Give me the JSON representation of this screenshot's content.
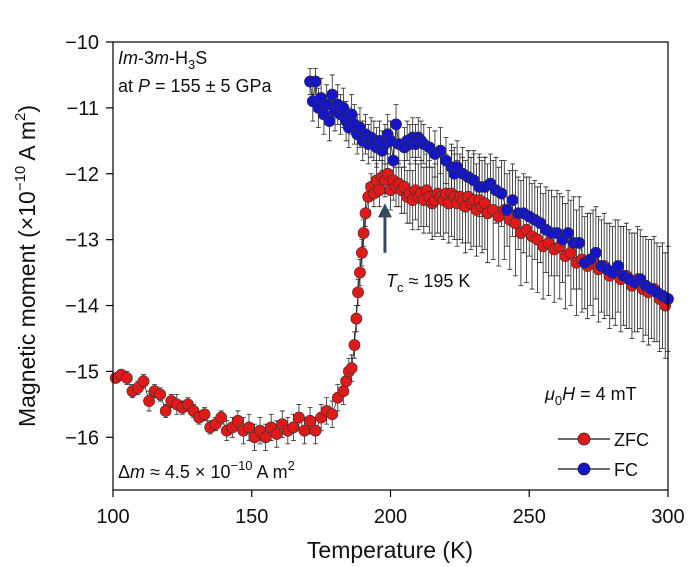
{
  "chart_data": {
    "type": "scatter",
    "xlabel": "Temperature (K)",
    "ylabel": {
      "main": "Magnetic moment (×10",
      "exp": "−10",
      "unit": " A m",
      "unit_exp": "2",
      "close": ")"
    },
    "xlim": [
      100,
      300
    ],
    "ylim": [
      -16.8,
      -10
    ],
    "xticks": [
      100,
      150,
      200,
      250,
      300
    ],
    "xtick_labels": [
      "100",
      "150",
      "200",
      "250",
      "300"
    ],
    "yticks": [
      -10,
      -11,
      -12,
      -13,
      -14,
      -15,
      -16
    ],
    "ytick_labels": [
      "−10",
      "−11",
      "−12",
      "−13",
      "−14",
      "−15",
      "−16"
    ],
    "annotations": {
      "sample_line1": {
        "italic1": "Im",
        "t1": "-3",
        "italic2": "m",
        "t2": "-H",
        "sub": "3",
        "t3": "S"
      },
      "sample_line2": {
        "t1": "at ",
        "italic": "P",
        "t2": " = 155 ± 5 GPa"
      },
      "tc": {
        "italic": "T",
        "sub": "c",
        "text": " ≈ 195 K",
        "arrow_x": 198,
        "arrow_y_from": -13.2,
        "arrow_y_to": -12.45
      },
      "field": {
        "mu": "μ",
        "sub": "0",
        "italic": "H",
        "text": " = 4 mT"
      },
      "delta": {
        "prefix": "Δ",
        "italic": "m",
        "text": " ≈ 4.5 × 10",
        "exp": "−10",
        "unit": " A m",
        "unit_exp": "2"
      }
    },
    "legend": [
      {
        "label": "ZFC",
        "color": "#e01919"
      },
      {
        "label": "FC",
        "color": "#1515c8"
      }
    ],
    "series": [
      {
        "name": "ZFC",
        "color": "#e01919",
        "points": [
          [
            101,
            -15.1,
            0.05
          ],
          [
            103,
            -15.05,
            0.05
          ],
          [
            105,
            -15.1,
            0.1
          ],
          [
            107,
            -15.3,
            0.1
          ],
          [
            109,
            -15.25,
            0.1
          ],
          [
            111,
            -15.15,
            0.1
          ],
          [
            113,
            -15.45,
            0.15
          ],
          [
            115,
            -15.3,
            0.1
          ],
          [
            117,
            -15.35,
            0.1
          ],
          [
            119,
            -15.6,
            0.1
          ],
          [
            121,
            -15.45,
            0.1
          ],
          [
            123,
            -15.5,
            0.15
          ],
          [
            125,
            -15.55,
            0.1
          ],
          [
            127,
            -15.5,
            0.1
          ],
          [
            129,
            -15.6,
            0.1
          ],
          [
            131,
            -15.7,
            0.1
          ],
          [
            133,
            -15.65,
            0.1
          ],
          [
            135,
            -15.85,
            0.1
          ],
          [
            137,
            -15.8,
            0.1
          ],
          [
            139,
            -15.7,
            0.1
          ],
          [
            141,
            -15.9,
            0.15
          ],
          [
            143,
            -15.85,
            0.15
          ],
          [
            145,
            -15.75,
            0.15
          ],
          [
            147,
            -15.9,
            0.2
          ],
          [
            149,
            -15.85,
            0.2
          ],
          [
            151,
            -16.0,
            0.2
          ],
          [
            153,
            -15.9,
            0.2
          ],
          [
            155,
            -16.0,
            0.2
          ],
          [
            157,
            -15.85,
            0.2
          ],
          [
            159,
            -15.95,
            0.2
          ],
          [
            161,
            -15.8,
            0.2
          ],
          [
            163,
            -15.9,
            0.2
          ],
          [
            165,
            -15.85,
            0.2
          ],
          [
            167,
            -15.7,
            0.2
          ],
          [
            169,
            -15.9,
            0.2
          ],
          [
            171,
            -15.75,
            0.2
          ],
          [
            173,
            -15.9,
            0.2
          ],
          [
            175,
            -15.7,
            0.2
          ],
          [
            177,
            -15.6,
            0.2
          ],
          [
            179,
            -15.65,
            0.2
          ],
          [
            181,
            -15.4,
            0.2
          ],
          [
            183,
            -15.3,
            0.2
          ],
          [
            184,
            -15.15,
            0.2
          ],
          [
            185,
            -15.0,
            0.2
          ],
          [
            186,
            -14.95,
            0.2
          ],
          [
            187,
            -14.6,
            0.2
          ],
          [
            187.7,
            -14.2,
            0.2
          ],
          [
            188.3,
            -13.8,
            0.2
          ],
          [
            189,
            -13.5,
            0.2
          ],
          [
            189.7,
            -13.2,
            0.2
          ],
          [
            190.3,
            -12.9,
            0.2
          ],
          [
            191,
            -12.6,
            0.2
          ],
          [
            192,
            -12.35,
            0.2
          ],
          [
            193,
            -12.2,
            0.2
          ],
          [
            194,
            -12.3,
            0.2
          ],
          [
            195,
            -12.1,
            0.25
          ],
          [
            196,
            -12.25,
            0.25
          ],
          [
            197,
            -12.05,
            0.25
          ],
          [
            198,
            -12.1,
            0.25
          ],
          [
            199,
            -12.0,
            0.3
          ],
          [
            200,
            -12.25,
            0.3
          ],
          [
            201,
            -12.1,
            0.3
          ],
          [
            202,
            -12.2,
            0.3
          ],
          [
            203,
            -12.15,
            0.35
          ],
          [
            204,
            -12.25,
            0.35
          ],
          [
            205,
            -12.2,
            0.4
          ],
          [
            206,
            -12.35,
            0.4
          ],
          [
            207,
            -12.3,
            0.45
          ],
          [
            208,
            -12.4,
            0.45
          ],
          [
            209,
            -12.25,
            0.45
          ],
          [
            210,
            -12.35,
            0.5
          ],
          [
            211,
            -12.3,
            0.5
          ],
          [
            212,
            -12.4,
            0.5
          ],
          [
            213,
            -12.25,
            0.55
          ],
          [
            214,
            -12.35,
            0.55
          ],
          [
            215,
            -12.45,
            0.55
          ],
          [
            216,
            -12.4,
            0.55
          ],
          [
            217,
            -12.3,
            0.6
          ],
          [
            218,
            -12.35,
            0.6
          ],
          [
            219,
            -12.4,
            0.6
          ],
          [
            220,
            -12.3,
            0.6
          ],
          [
            221,
            -12.45,
            0.6
          ],
          [
            222,
            -12.3,
            0.65
          ],
          [
            223,
            -12.35,
            0.65
          ],
          [
            224,
            -12.45,
            0.65
          ],
          [
            225,
            -12.35,
            0.65
          ],
          [
            226,
            -12.4,
            0.65
          ],
          [
            227,
            -12.5,
            0.7
          ],
          [
            228,
            -12.35,
            0.7
          ],
          [
            229,
            -12.45,
            0.7
          ],
          [
            230,
            -12.4,
            0.7
          ],
          [
            231,
            -12.55,
            0.7
          ],
          [
            232,
            -12.4,
            0.7
          ],
          [
            233,
            -12.5,
            0.7
          ],
          [
            234,
            -12.45,
            0.7
          ],
          [
            235,
            -12.6,
            0.75
          ],
          [
            237,
            -12.55,
            0.75
          ],
          [
            239,
            -12.65,
            0.75
          ],
          [
            241,
            -12.55,
            0.75
          ],
          [
            243,
            -12.7,
            0.75
          ],
          [
            245,
            -12.75,
            0.8
          ],
          [
            247,
            -12.9,
            0.8
          ],
          [
            249,
            -12.85,
            0.8
          ],
          [
            251,
            -12.95,
            0.8
          ],
          [
            253,
            -13.0,
            0.8
          ],
          [
            255,
            -13.1,
            0.8
          ],
          [
            257,
            -13.05,
            0.8
          ],
          [
            259,
            -13.15,
            0.8
          ],
          [
            261,
            -13.1,
            0.8
          ],
          [
            263,
            -13.25,
            0.8
          ],
          [
            265,
            -13.2,
            0.8
          ],
          [
            267,
            -13.35,
            0.8
          ],
          [
            269,
            -13.3,
            0.8
          ],
          [
            271,
            -13.4,
            0.8
          ],
          [
            273,
            -13.35,
            0.8
          ],
          [
            275,
            -13.45,
            0.8
          ],
          [
            277,
            -13.4,
            0.8
          ],
          [
            279,
            -13.55,
            0.8
          ],
          [
            281,
            -13.5,
            0.8
          ],
          [
            283,
            -13.6,
            0.8
          ],
          [
            285,
            -13.55,
            0.8
          ],
          [
            287,
            -13.7,
            0.8
          ],
          [
            289,
            -13.6,
            0.8
          ],
          [
            291,
            -13.75,
            0.8
          ],
          [
            293,
            -13.8,
            0.8
          ],
          [
            295,
            -13.75,
            0.8
          ],
          [
            297,
            -13.9,
            0.8
          ],
          [
            299,
            -14.0,
            0.8
          ]
        ]
      },
      {
        "name": "FC",
        "color": "#1515c8",
        "points": [
          [
            171,
            -10.6,
            0.2
          ],
          [
            172,
            -10.9,
            0.3
          ],
          [
            173,
            -10.6,
            0.2
          ],
          [
            174,
            -11.0,
            0.3
          ],
          [
            175,
            -10.85,
            0.3
          ],
          [
            176,
            -11.1,
            0.3
          ],
          [
            177,
            -10.95,
            0.3
          ],
          [
            178,
            -11.2,
            0.3
          ],
          [
            179,
            -10.8,
            0.3
          ],
          [
            180,
            -11.05,
            0.3
          ],
          [
            181,
            -10.95,
            0.3
          ],
          [
            182,
            -11.1,
            0.3
          ],
          [
            183,
            -11.0,
            0.3
          ],
          [
            184,
            -11.2,
            0.3
          ],
          [
            185,
            -11.3,
            0.3
          ],
          [
            186,
            -11.1,
            0.3
          ],
          [
            187,
            -11.25,
            0.3
          ],
          [
            188,
            -11.4,
            0.3
          ],
          [
            189,
            -11.3,
            0.3
          ],
          [
            190,
            -11.5,
            0.3
          ],
          [
            191,
            -11.4,
            0.3
          ],
          [
            192,
            -11.55,
            0.3
          ],
          [
            193,
            -11.45,
            0.3
          ],
          [
            194,
            -11.5,
            0.3
          ],
          [
            195,
            -11.6,
            0.3
          ],
          [
            196,
            -11.5,
            0.3
          ],
          [
            197,
            -11.65,
            0.3
          ],
          [
            198,
            -11.55,
            0.3
          ],
          [
            199,
            -11.4,
            0.3
          ],
          [
            200,
            -11.5,
            0.3
          ],
          [
            201,
            -11.8,
            0.3
          ],
          [
            202,
            -11.25,
            0.3
          ],
          [
            203,
            -11.55,
            0.3
          ],
          [
            205,
            -11.6,
            0.3
          ],
          [
            206,
            -11.5,
            0.3
          ],
          [
            207,
            -11.55,
            0.3
          ],
          [
            208,
            -11.45,
            0.3
          ],
          [
            209,
            -11.55,
            0.3
          ],
          [
            210,
            -11.45,
            0.3
          ],
          [
            211,
            -11.5,
            0.3
          ],
          [
            212,
            -11.55,
            0.3
          ],
          [
            214,
            -11.6,
            0.3
          ],
          [
            216,
            -11.7,
            0.35
          ],
          [
            218,
            -11.65,
            0.35
          ],
          [
            220,
            -11.8,
            0.35
          ],
          [
            222,
            -11.9,
            0.35
          ],
          [
            223,
            -12.0,
            0.4
          ],
          [
            224,
            -11.9,
            0.4
          ],
          [
            226,
            -12.0,
            0.4
          ],
          [
            228,
            -12.05,
            0.4
          ],
          [
            230,
            -12.1,
            0.45
          ],
          [
            232,
            -12.2,
            0.45
          ],
          [
            234,
            -12.2,
            0.45
          ],
          [
            236,
            -12.15,
            0.45
          ],
          [
            238,
            -12.25,
            0.5
          ],
          [
            240,
            -12.3,
            0.5
          ],
          [
            242,
            -12.55,
            0.55
          ],
          [
            244,
            -12.4,
            0.55
          ],
          [
            246,
            -12.6,
            0.55
          ],
          [
            248,
            -12.6,
            0.6
          ],
          [
            250,
            -12.65,
            0.6
          ],
          [
            252,
            -12.7,
            0.6
          ],
          [
            254,
            -12.75,
            0.6
          ],
          [
            256,
            -12.85,
            0.65
          ],
          [
            258,
            -12.9,
            0.65
          ],
          [
            260,
            -12.9,
            0.65
          ],
          [
            262,
            -13.0,
            0.65
          ],
          [
            264,
            -12.9,
            0.65
          ],
          [
            266,
            -13.05,
            0.7
          ],
          [
            268,
            -13.05,
            0.7
          ],
          [
            270,
            -13.35,
            0.7
          ],
          [
            272,
            -13.3,
            0.7
          ],
          [
            274,
            -13.2,
            0.7
          ],
          [
            276,
            -13.4,
            0.7
          ],
          [
            278,
            -13.45,
            0.7
          ],
          [
            280,
            -13.5,
            0.7
          ],
          [
            282,
            -13.4,
            0.7
          ],
          [
            284,
            -13.55,
            0.75
          ],
          [
            286,
            -13.6,
            0.75
          ],
          [
            288,
            -13.65,
            0.75
          ],
          [
            290,
            -13.6,
            0.75
          ],
          [
            292,
            -13.7,
            0.75
          ],
          [
            294,
            -13.75,
            0.75
          ],
          [
            296,
            -13.8,
            0.75
          ],
          [
            298,
            -13.85,
            0.8
          ],
          [
            300,
            -13.9,
            0.8
          ]
        ]
      }
    ]
  }
}
